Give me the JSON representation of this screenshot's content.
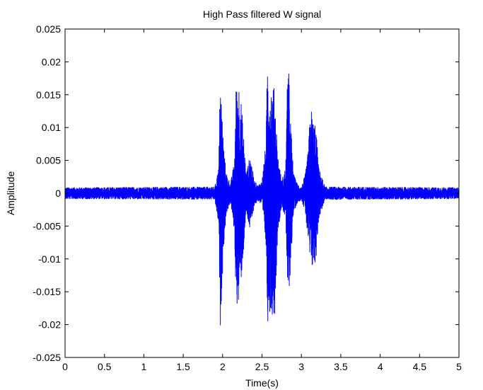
{
  "chart_data": {
    "type": "line",
    "title": "High Pass filtered W signal",
    "xlabel": "Time(s)",
    "ylabel": "Amplitude",
    "xlim": [
      0,
      5
    ],
    "ylim": [
      -0.025,
      0.025
    ],
    "grid": false,
    "x_ticks": [
      {
        "value": 0,
        "label": "0"
      },
      {
        "value": 0.5,
        "label": "0.5"
      },
      {
        "value": 1,
        "label": "1"
      },
      {
        "value": 1.5,
        "label": "1.5"
      },
      {
        "value": 2,
        "label": "2"
      },
      {
        "value": 2.5,
        "label": "2.5"
      },
      {
        "value": 3,
        "label": "3"
      },
      {
        "value": 3.5,
        "label": "3.5"
      },
      {
        "value": 4,
        "label": "4"
      },
      {
        "value": 4.5,
        "label": "4.5"
      },
      {
        "value": 5,
        "label": "5"
      }
    ],
    "y_ticks": [
      {
        "value": 0.025,
        "label": "0.025"
      },
      {
        "value": 0.02,
        "label": "0.02"
      },
      {
        "value": 0.015,
        "label": "0.015"
      },
      {
        "value": 0.01,
        "label": "0.01"
      },
      {
        "value": 0.005,
        "label": "0.005"
      },
      {
        "value": 0,
        "label": "0"
      },
      {
        "value": -0.005,
        "label": "-0.005"
      },
      {
        "value": -0.01,
        "label": "-0.01"
      },
      {
        "value": -0.015,
        "label": "-0.015"
      },
      {
        "value": -0.02,
        "label": "-0.02"
      },
      {
        "value": -0.025,
        "label": "-0.025"
      }
    ],
    "series": [
      {
        "color": "#0000ff",
        "envelope": {
          "x": [
            0,
            1.9,
            1.95,
            1.97,
            1.99,
            2.02,
            2.05,
            2.1,
            2.15,
            2.17,
            2.2,
            2.23,
            2.26,
            2.3,
            2.35,
            2.4,
            2.45,
            2.5,
            2.55,
            2.57,
            2.6,
            2.63,
            2.66,
            2.7,
            2.75,
            2.8,
            2.83,
            2.86,
            2.9,
            2.95,
            3.0,
            3.05,
            3.08,
            3.12,
            3.15,
            3.18,
            3.22,
            3.3,
            3.5,
            5
          ],
          "upper": [
            0.0009,
            0.001,
            0.004,
            0.0188,
            0.013,
            0.006,
            0.003,
            0.0015,
            0.005,
            0.016,
            0.0178,
            0.015,
            0.01,
            0.003,
            0.006,
            0.002,
            0.0012,
            0.002,
            0.008,
            0.0211,
            0.017,
            0.0165,
            0.016,
            0.006,
            0.002,
            0.004,
            0.0219,
            0.012,
            0.003,
            0.0015,
            0.001,
            0.003,
            0.006,
            0.0135,
            0.011,
            0.011,
            0.004,
            0.001,
            0.001,
            0.0009
          ],
          "lower": [
            -0.0009,
            -0.001,
            -0.005,
            -0.0209,
            -0.0145,
            -0.007,
            -0.003,
            -0.0015,
            -0.006,
            -0.0165,
            -0.0175,
            -0.014,
            -0.01,
            -0.003,
            -0.006,
            -0.002,
            -0.0012,
            -0.002,
            -0.008,
            -0.0198,
            -0.018,
            -0.0185,
            -0.019,
            -0.006,
            -0.002,
            -0.004,
            -0.0175,
            -0.012,
            -0.003,
            -0.0015,
            -0.001,
            -0.003,
            -0.007,
            -0.0122,
            -0.0112,
            -0.0112,
            -0.004,
            -0.001,
            -0.001,
            -0.0009
          ]
        }
      }
    ]
  }
}
